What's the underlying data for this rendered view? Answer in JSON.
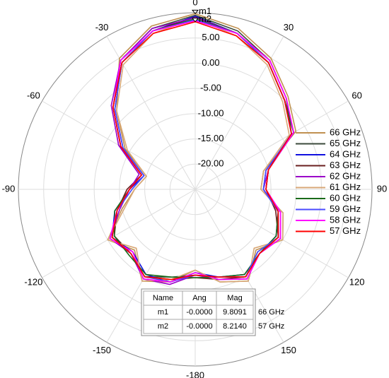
{
  "chart_data": {
    "type": "polar",
    "theta": [
      -180,
      -165,
      -150,
      -135,
      -120,
      -105,
      -90,
      -75,
      -60,
      -45,
      -30,
      -15,
      0,
      15,
      30,
      45,
      60,
      75,
      90,
      105,
      120,
      135,
      150,
      165,
      180
    ],
    "rlim": [
      -25,
      10
    ],
    "rticks": [
      {
        "value": 5,
        "label": "5.00"
      },
      {
        "value": 0,
        "label": "0.00"
      },
      {
        "value": -5,
        "label": "-5.00"
      },
      {
        "value": -10,
        "label": "-10.00"
      },
      {
        "value": -15,
        "label": "-15.00"
      },
      {
        "value": -20,
        "label": "-20.00"
      }
    ],
    "theta_ticks": [
      0,
      30,
      60,
      90,
      120,
      150,
      -180,
      -150,
      -120,
      -90,
      -60,
      -30
    ],
    "legend": "right",
    "series": [
      {
        "name": "66 GHz",
        "color": "#c09050",
        "values": [
          -9,
          -6,
          -4,
          -8,
          -5,
          -10,
          -13,
          -15,
          -9,
          -3,
          5,
          8.5,
          9.8091,
          8,
          5,
          1,
          -2,
          -11,
          -12,
          -7,
          -5,
          -8,
          -4,
          -6,
          -9
        ]
      },
      {
        "name": "65 GHz",
        "color": "#3b4a3b",
        "values": [
          -8,
          -7,
          -5,
          -7,
          -6,
          -9,
          -12,
          -14,
          -8,
          -2,
          4.5,
          8,
          9.5,
          7.5,
          4.5,
          0.5,
          -3,
          -10,
          -11,
          -8,
          -6,
          -7,
          -5,
          -7,
          -8
        ]
      },
      {
        "name": "64 GHz",
        "color": "#1010e0",
        "values": [
          -8.5,
          -6,
          -5.5,
          -7.5,
          -6,
          -8.5,
          -12,
          -14.5,
          -8.5,
          -2.5,
          4,
          7.5,
          9.3,
          7,
          4,
          0,
          -2.5,
          -10.5,
          -11.5,
          -8,
          -6.5,
          -7,
          -5.5,
          -7,
          -8.5
        ]
      },
      {
        "name": "63 GHz",
        "color": "#6a1f1f",
        "values": [
          -7.5,
          -6.5,
          -5,
          -7,
          -6.5,
          -9,
          -11.5,
          -14,
          -8,
          -2,
          4,
          7.5,
          9.1,
          7,
          4,
          0,
          -3,
          -10,
          -11,
          -8.5,
          -6,
          -7.5,
          -5,
          -6.5,
          -7.5
        ]
      },
      {
        "name": "62 GHz",
        "color": "#9a00c8",
        "values": [
          -8,
          -5.5,
          -4.5,
          -7,
          -5.5,
          -9.5,
          -12,
          -13.5,
          -7.5,
          -1.5,
          4.5,
          8,
          9,
          7,
          4.5,
          0.5,
          -2.5,
          -10,
          -11.5,
          -7.5,
          -5.5,
          -7,
          -4.5,
          -6.5,
          -8
        ]
      },
      {
        "name": "61 GHz",
        "color": "#d8a878",
        "values": [
          -9,
          -6.5,
          -4,
          -8.5,
          -5,
          -10.5,
          -13,
          -15,
          -9.5,
          -3,
          3.5,
          7,
          8.9,
          6.5,
          3.5,
          -0.5,
          -3.5,
          -11,
          -12,
          -7,
          -5,
          -8.5,
          -4,
          -6,
          -9
        ]
      },
      {
        "name": "60 GHz",
        "color": "#1a6b1a",
        "values": [
          -7.5,
          -7,
          -5.5,
          -6.5,
          -6.5,
          -8.5,
          -12,
          -14,
          -8,
          -2,
          4,
          7.5,
          8.8,
          7,
          4,
          0,
          -2.5,
          -10,
          -11,
          -8,
          -6.5,
          -7,
          -5.5,
          -7,
          -7.5
        ]
      },
      {
        "name": "59 GHz",
        "color": "#4a4aff",
        "values": [
          -8,
          -6,
          -5,
          -7,
          -6,
          -9,
          -12.5,
          -14.5,
          -8.5,
          -2.5,
          4,
          7.5,
          8.6,
          7,
          4,
          0,
          -3,
          -10.5,
          -11.5,
          -8,
          -6,
          -7.5,
          -5,
          -7,
          -8
        ]
      },
      {
        "name": "58 GHz",
        "color": "#ff00ff",
        "values": [
          -8.5,
          -6,
          -4.5,
          -7.5,
          -5.5,
          -9,
          -12,
          -14,
          -8,
          -2,
          4.5,
          7.5,
          8.4,
          7,
          4.5,
          0.5,
          -2.5,
          -10,
          -11,
          -7.5,
          -5.5,
          -7,
          -4.5,
          -6.5,
          -8.5
        ]
      },
      {
        "name": "57 GHz",
        "color": "#ff0000",
        "values": [
          -8,
          -6.5,
          -5,
          -7,
          -6,
          -9,
          -12,
          -14,
          -8,
          -2,
          4,
          7,
          8.214,
          6.5,
          4,
          0,
          -3,
          -10,
          -11,
          -8,
          -6,
          -7,
          -5,
          -7,
          -8
        ]
      }
    ],
    "markers": [
      {
        "name": "m1",
        "theta": 0,
        "value": 9.8091
      },
      {
        "name": "m2",
        "theta": 0,
        "value": 8.214
      }
    ],
    "marker_table": {
      "columns": [
        "Name",
        "Ang",
        "Mag"
      ],
      "rows": [
        [
          "m1",
          "-0.0000",
          "9.8091",
          "66 GHz"
        ],
        [
          "m2",
          "-0.0000",
          "8.2140",
          "57 GHz"
        ]
      ]
    }
  }
}
